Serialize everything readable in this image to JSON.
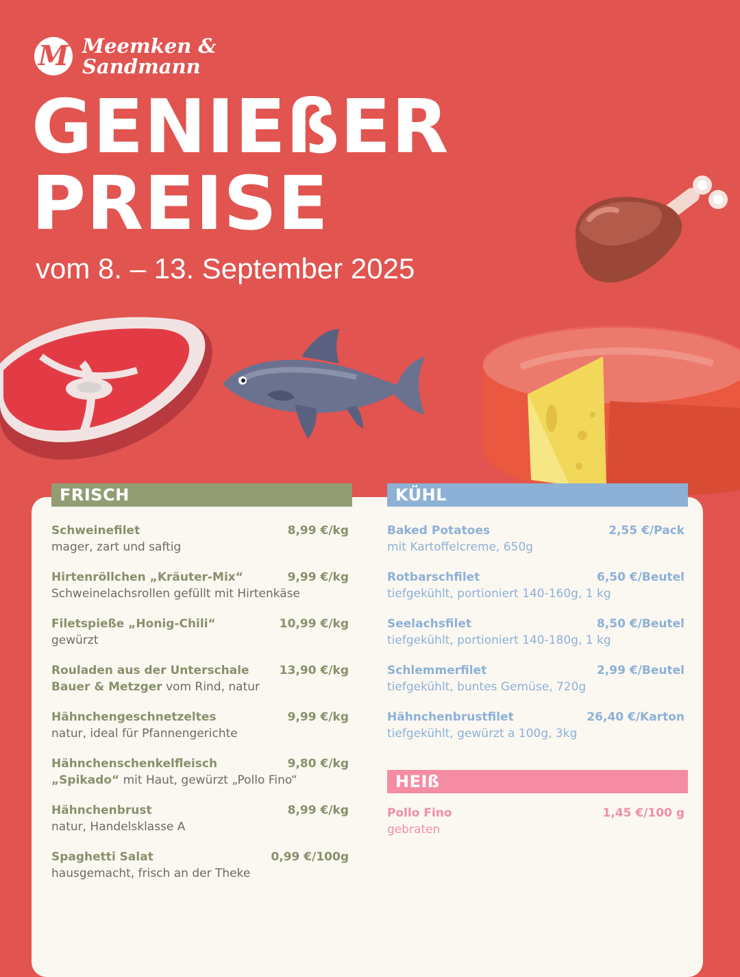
{
  "brand": {
    "logo_letter": "M",
    "line1": "Meemken &",
    "line2": "Sandmann"
  },
  "headline": {
    "line1": "GENIEßER",
    "line2": "PREISE"
  },
  "dates": "vom 8. – 13. September 2025",
  "colors": {
    "background": "#e15450",
    "frisch": "#939d74",
    "kuehl": "#8db0d6",
    "heiss": "#f58ca3",
    "card": "#fbf8f2"
  },
  "frisch": {
    "title": "FRISCH",
    "items": [
      {
        "name": "Schweinefilet",
        "price": "8,99 €/kg",
        "desc": "mager, zart und saftig"
      },
      {
        "name": "Hirtenröllchen „Kräuter-Mix“",
        "price": "9,99 €/kg",
        "desc": "Schweinelachsrollen gefüllt mit Hirtenkäse"
      },
      {
        "name": "Filetspieße „Honig-Chili“",
        "price": "10,99 €/kg",
        "desc": "gewürzt"
      },
      {
        "name": "Rouladen aus der Unterschale",
        "price": "13,90 €/kg",
        "desc_bold": "Bauer & Metzger",
        "desc": " vom Rind, natur"
      },
      {
        "name": "Hähnchengeschnetzeltes",
        "price": "9,99 €/kg",
        "desc": "natur, ideal für Pfannengerichte"
      },
      {
        "name": "Hähnchenschenkelfleisch",
        "price": "9,80 €/kg",
        "desc_bold": "„Spikado“",
        "desc": " mit Haut, gewürzt „Pollo Fino“"
      },
      {
        "name": "Hähnchenbrust",
        "price": "8,99 €/kg",
        "desc": "natur, Handelsklasse A"
      },
      {
        "name": "Spaghetti Salat",
        "price": "0,99 €/100g",
        "desc": "hausgemacht, frisch an der Theke"
      }
    ]
  },
  "kuehl": {
    "title": "KÜHL",
    "items": [
      {
        "name": "Baked Potatoes",
        "price": "2,55 €/Pack",
        "desc": "mit Kartoffelcreme, 650g"
      },
      {
        "name": "Rotbarschfilet",
        "price": "6,50 €/Beutel",
        "desc": "tiefgekühlt, portioniert 140-160g, 1 kg"
      },
      {
        "name": "Seelachsfilet",
        "price": "8,50 €/Beutel",
        "desc": "tiefgekühlt, portioniert 140-180g, 1 kg"
      },
      {
        "name": "Schlemmerfilet",
        "price": "2,99 €/Beutel",
        "desc": "tiefgekühlt, buntes Gemüse, 720g"
      },
      {
        "name": "Hähnchenbrustfilet",
        "price": "26,40 €/Karton",
        "desc": "tiefgekühlt, gewürzt a 100g, 3kg"
      }
    ]
  },
  "heiss": {
    "title": "HEIß",
    "items": [
      {
        "name": "Pollo Fino",
        "price": "1,45 €/100 g",
        "desc": "gebraten"
      }
    ]
  }
}
